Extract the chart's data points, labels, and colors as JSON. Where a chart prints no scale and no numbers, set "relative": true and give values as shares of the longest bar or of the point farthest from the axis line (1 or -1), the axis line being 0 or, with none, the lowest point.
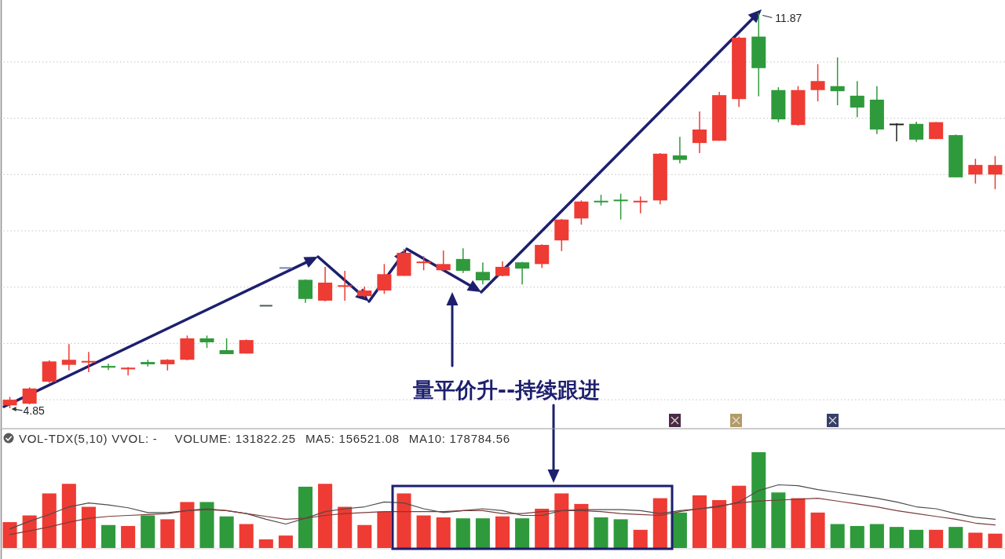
{
  "chart_data": [
    {
      "type": "candlestick",
      "categories": [
        null,
        null,
        null,
        null,
        null,
        null,
        null,
        null,
        null,
        null,
        null,
        null,
        null,
        null,
        null,
        null,
        null,
        null,
        null,
        null,
        null,
        null,
        null,
        null,
        null,
        null,
        null,
        null,
        null,
        null,
        null,
        null,
        null,
        null,
        null,
        null,
        null,
        null,
        null,
        null,
        null,
        null,
        null,
        null,
        null,
        null,
        null,
        null,
        null,
        null,
        null
      ],
      "ohlc": [
        [
          4.9,
          5.05,
          4.85,
          5.0
        ],
        [
          4.93,
          5.22,
          4.92,
          5.2
        ],
        [
          5.32,
          5.7,
          5.3,
          5.68
        ],
        [
          5.62,
          5.99,
          5.52,
          5.71
        ],
        [
          5.67,
          5.85,
          5.49,
          5.68
        ],
        [
          5.6,
          5.64,
          5.53,
          5.57
        ],
        [
          5.54,
          5.58,
          5.43,
          5.57
        ],
        [
          5.67,
          5.71,
          5.59,
          5.63
        ],
        [
          5.63,
          5.72,
          5.52,
          5.71
        ],
        [
          5.71,
          6.14,
          5.7,
          6.09
        ],
        [
          6.09,
          6.14,
          5.92,
          6.02
        ],
        [
          5.88,
          6.09,
          5.81,
          5.81
        ],
        [
          5.82,
          6.07,
          5.82,
          6.06
        ],
        [
          6.67,
          6.67,
          6.67,
          6.67
        ],
        [
          7.34,
          7.34,
          7.34,
          7.34
        ],
        [
          7.13,
          7.14,
          6.72,
          6.79
        ],
        [
          6.76,
          7.36,
          6.75,
          7.08
        ],
        [
          7.01,
          7.29,
          6.76,
          7.03
        ],
        [
          6.84,
          7.01,
          6.82,
          6.94
        ],
        [
          6.94,
          7.41,
          6.88,
          7.23
        ],
        [
          7.2,
          7.68,
          7.2,
          7.61
        ],
        [
          7.43,
          7.55,
          7.3,
          7.45
        ],
        [
          7.3,
          7.65,
          7.29,
          7.41
        ],
        [
          7.5,
          7.69,
          7.25,
          7.29
        ],
        [
          7.27,
          7.44,
          7.05,
          7.12
        ],
        [
          7.2,
          7.46,
          7.19,
          7.36
        ],
        [
          7.44,
          7.45,
          7.05,
          7.33
        ],
        [
          7.41,
          7.76,
          7.34,
          7.75
        ],
        [
          7.83,
          8.21,
          7.64,
          8.2
        ],
        [
          8.22,
          8.54,
          8.11,
          8.52
        ],
        [
          8.53,
          8.64,
          8.45,
          8.51
        ],
        [
          8.55,
          8.66,
          8.2,
          8.53
        ],
        [
          8.51,
          8.61,
          8.31,
          8.53
        ],
        [
          8.54,
          9.38,
          8.47,
          9.37
        ],
        [
          9.34,
          9.67,
          9.2,
          9.26
        ],
        [
          9.56,
          10.12,
          9.38,
          9.8
        ],
        [
          9.6,
          10.47,
          9.6,
          10.41
        ],
        [
          10.34,
          11.45,
          10.2,
          11.43
        ],
        [
          11.45,
          11.87,
          10.39,
          10.89
        ],
        [
          10.5,
          10.55,
          9.93,
          9.98
        ],
        [
          9.88,
          10.57,
          9.87,
          10.5
        ],
        [
          10.5,
          10.96,
          10.3,
          10.66
        ],
        [
          10.57,
          11.08,
          10.23,
          10.48
        ],
        [
          10.4,
          10.66,
          10.02,
          10.19
        ],
        [
          10.33,
          10.57,
          9.72,
          9.8
        ],
        [
          9.89,
          9.91,
          9.59,
          9.89
        ],
        [
          9.9,
          9.94,
          9.58,
          9.62
        ],
        [
          9.63,
          9.93,
          9.63,
          9.93
        ],
        [
          9.7,
          9.71,
          8.95,
          8.95
        ],
        [
          9.0,
          9.28,
          8.84,
          9.17
        ],
        [
          9.0,
          9.33,
          8.74,
          9.17
        ]
      ],
      "colors": [
        "#ee3b33",
        "#ee3b33",
        "#ee3b33",
        "#ee3b33",
        "#ee3b33",
        "#2f9a3c",
        "#ee3b33",
        "#2f9a3c",
        "#ee3b33",
        "#ee3b33",
        "#2f9a3c",
        "#2f9a3c",
        "#ee3b33",
        "#4d5d55",
        "#6d84c4",
        "#2f9a3c",
        "#ee3b33",
        "#ee3b33",
        "#ee3b33",
        "#ee3b33",
        "#ee3b33",
        "#ee3b33",
        "#ee3b33",
        "#2f9a3c",
        "#2f9a3c",
        "#ee3b33",
        "#2f9a3c",
        "#ee3b33",
        "#ee3b33",
        "#ee3b33",
        "#2f9a3c",
        "#2f9a3c",
        "#ee3b33",
        "#ee3b33",
        "#2f9a3c",
        "#ee3b33",
        "#ee3b33",
        "#ee3b33",
        "#2f9a3c",
        "#2f9a3c",
        "#ee3b33",
        "#ee3b33",
        "#2f9a3c",
        "#2f9a3c",
        "#2f9a3c",
        "#222222",
        "#2f9a3c",
        "#ee3b33",
        "#2f9a3c",
        "#ee3b33",
        "#ee3b33"
      ],
      "ylim": [
        4.5,
        12.1
      ],
      "yticks": [
        {
          "value": 5,
          "label": null
        },
        {
          "value": 6,
          "label": null
        },
        {
          "value": 7,
          "label": null
        },
        {
          "value": 8,
          "label": null
        },
        {
          "value": 9,
          "label": null
        },
        {
          "value": 10,
          "label": null
        },
        {
          "value": 11,
          "label": null
        }
      ],
      "grid": "y",
      "annotations": [
        "4.85",
        "11.87",
        "量平价升--持续跟进"
      ]
    },
    {
      "type": "bar",
      "title": "VOL-TDX(5,10) VVOL: -",
      "relative": true,
      "categories": [
        null,
        null,
        null,
        null,
        null,
        null,
        null,
        null,
        null,
        null,
        null,
        null,
        null,
        null,
        null,
        null,
        null,
        null,
        null,
        null,
        null,
        null,
        null,
        null,
        null,
        null,
        null,
        null,
        null,
        null,
        null,
        null,
        null,
        null,
        null,
        null,
        null,
        null,
        null,
        null,
        null,
        null,
        null,
        null,
        null,
        null,
        null,
        null,
        null,
        null,
        null
      ],
      "series": [
        {
          "type": "bar",
          "values": [
            0.27,
            0.34,
            0.57,
            0.67,
            0.43,
            0.24,
            0.23,
            0.34,
            0.3,
            0.48,
            0.48,
            0.33,
            0.25,
            0.09,
            0.13,
            0.64,
            0.67,
            0.43,
            0.24,
            0.38,
            0.57,
            0.34,
            0.32,
            0.31,
            0.31,
            0.33,
            0.31,
            0.41,
            0.57,
            0.46,
            0.32,
            0.3,
            0.19,
            0.52,
            0.37,
            0.55,
            0.5,
            0.65,
            1,
            0.58,
            0.52,
            0.37,
            0.25,
            0.23,
            0.25,
            0.22,
            0.19,
            0.19,
            0.22,
            0.16,
            0.15
          ],
          "colors": [
            "#ee3b33",
            "#ee3b33",
            "#ee3b33",
            "#ee3b33",
            "#ee3b33",
            "#2f9a3c",
            "#ee3b33",
            "#2f9a3c",
            "#ee3b33",
            "#ee3b33",
            "#2f9a3c",
            "#2f9a3c",
            "#ee3b33",
            "#ee3b33",
            "#ee3b33",
            "#2f9a3c",
            "#ee3b33",
            "#ee3b33",
            "#ee3b33",
            "#ee3b33",
            "#ee3b33",
            "#ee3b33",
            "#ee3b33",
            "#2f9a3c",
            "#2f9a3c",
            "#ee3b33",
            "#2f9a3c",
            "#ee3b33",
            "#ee3b33",
            "#ee3b33",
            "#2f9a3c",
            "#2f9a3c",
            "#ee3b33",
            "#ee3b33",
            "#2f9a3c",
            "#ee3b33",
            "#ee3b33",
            "#ee3b33",
            "#2f9a3c",
            "#2f9a3c",
            "#ee3b33",
            "#ee3b33",
            "#2f9a3c",
            "#2f9a3c",
            "#2f9a3c",
            "#2f9a3c",
            "#2f9a3c",
            "#ee3b33",
            "#2f9a3c",
            "#ee3b33",
            "#ee3b33"
          ]
        },
        {
          "type": "line",
          "color": "#4d4d4d",
          "values": [
            0.2,
            0.28,
            0.35,
            0.43,
            0.47,
            0.45,
            0.42,
            0.37,
            0.37,
            0.39,
            0.41,
            0.39,
            0.36,
            0.3,
            0.25,
            0.31,
            0.38,
            0.41,
            0.43,
            0.48,
            0.47,
            0.41,
            0.37,
            0.39,
            0.41,
            0.39,
            0.34,
            0.34,
            0.39,
            0.4,
            0.4,
            0.4,
            0.39,
            0.36,
            0.39,
            0.41,
            0.43,
            0.48,
            0.6,
            0.66,
            0.65,
            0.61,
            0.58,
            0.55,
            0.52,
            0.48,
            0.43,
            0.41,
            0.36,
            0.32,
            0.3
          ]
        },
        {
          "type": "line",
          "color": "#7d3b3b",
          "values": [
            0.14,
            0.18,
            0.22,
            0.27,
            0.31,
            0.33,
            0.34,
            0.35,
            0.36,
            0.39,
            0.4,
            0.39,
            0.36,
            0.33,
            0.3,
            0.31,
            0.34,
            0.36,
            0.37,
            0.38,
            0.38,
            0.38,
            0.38,
            0.39,
            0.39,
            0.36,
            0.36,
            0.38,
            0.39,
            0.39,
            0.38,
            0.36,
            0.35,
            0.34,
            0.38,
            0.41,
            0.44,
            0.47,
            0.49,
            0.5,
            0.51,
            0.52,
            0.49,
            0.46,
            0.43,
            0.39,
            0.36,
            0.33,
            0.3,
            0.26,
            0.24
          ]
        }
      ],
      "annotations": [
        "VOLUME: 131822.25",
        "MA5: 156521.08",
        "MA10: 178784.56"
      ]
    }
  ]
}
